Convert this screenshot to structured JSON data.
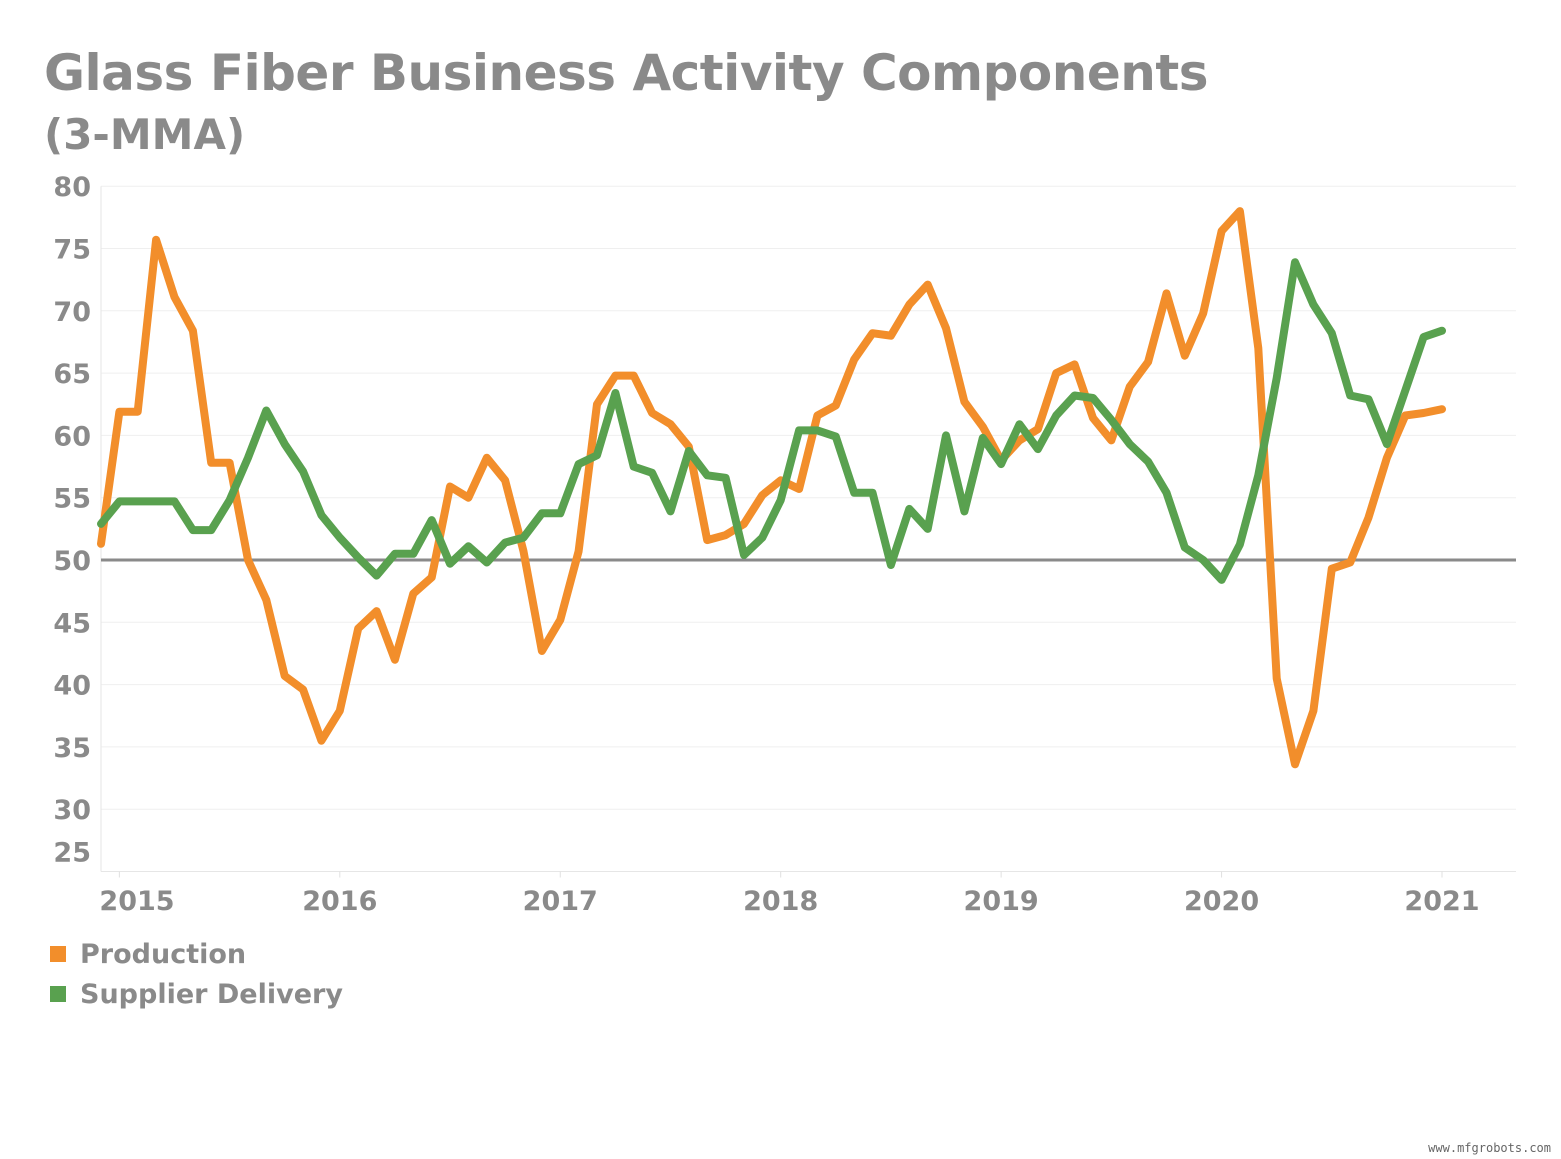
{
  "chart_data": {
    "type": "line",
    "title": "Glass Fiber Business Activity Components",
    "subtitle": "(3-MMA)",
    "xlabel": "",
    "ylabel": "",
    "ylim": [
      25,
      80
    ],
    "yticks": [
      80,
      75,
      70,
      65,
      60,
      55,
      50,
      45,
      40,
      35,
      30,
      25
    ],
    "xticks": [
      "2015",
      "2016",
      "2017",
      "2018",
      "2019",
      "2020",
      "2021"
    ],
    "reference_line": 50,
    "grid": true,
    "legend_position": "bottom-left",
    "x_start": "2014-12",
    "x_end": "2021-01",
    "x_step": "month",
    "series": [
      {
        "name": "Production",
        "color": "#f28e2b",
        "values": [
          51.3,
          61.9,
          61.9,
          75.7,
          71.1,
          68.4,
          57.8,
          57.8,
          50.0,
          46.8,
          40.7,
          39.6,
          35.5,
          37.9,
          44.5,
          45.9,
          42.0,
          47.3,
          48.6,
          55.9,
          55.0,
          58.2,
          56.4,
          50.7,
          42.7,
          45.2,
          50.7,
          62.5,
          64.8,
          64.8,
          61.8,
          60.9,
          59.1,
          51.6,
          52.0,
          52.9,
          55.2,
          56.4,
          55.7,
          61.6,
          62.4,
          66.1,
          68.2,
          68.0,
          70.5,
          72.1,
          68.6,
          62.7,
          60.7,
          58.0,
          59.6,
          60.5,
          65.0,
          65.7,
          61.4,
          59.6,
          63.9,
          65.9,
          71.4,
          66.4,
          69.8,
          76.4,
          78.0,
          67.0,
          40.5,
          33.6,
          37.9,
          49.3,
          49.8,
          53.4,
          58.2,
          61.6,
          61.8,
          62.1
        ]
      },
      {
        "name": "Supplier Delivery",
        "color": "#59a14f",
        "values": [
          52.9,
          54.7,
          54.7,
          54.7,
          54.7,
          52.4,
          52.4,
          54.8,
          58.2,
          62.0,
          59.3,
          57.1,
          53.6,
          51.8,
          50.2,
          48.75,
          50.5,
          50.5,
          53.2,
          49.7,
          51.1,
          49.8,
          51.4,
          51.8,
          53.75,
          53.75,
          57.7,
          58.4,
          63.4,
          57.5,
          57.0,
          53.9,
          58.75,
          56.8,
          56.6,
          50.4,
          51.8,
          54.8,
          60.4,
          60.4,
          59.9,
          55.4,
          55.4,
          49.6,
          54.1,
          52.5,
          60.0,
          53.9,
          59.8,
          57.7,
          60.9,
          58.9,
          61.6,
          63.2,
          63.0,
          61.25,
          59.3,
          57.9,
          55.4,
          51.0,
          50.0,
          48.4,
          51.25,
          56.8,
          64.6,
          73.9,
          70.5,
          68.2,
          63.2,
          62.9,
          59.3,
          63.6,
          67.9,
          68.4
        ]
      }
    ]
  },
  "watermark": "www.mfgrobots.com"
}
